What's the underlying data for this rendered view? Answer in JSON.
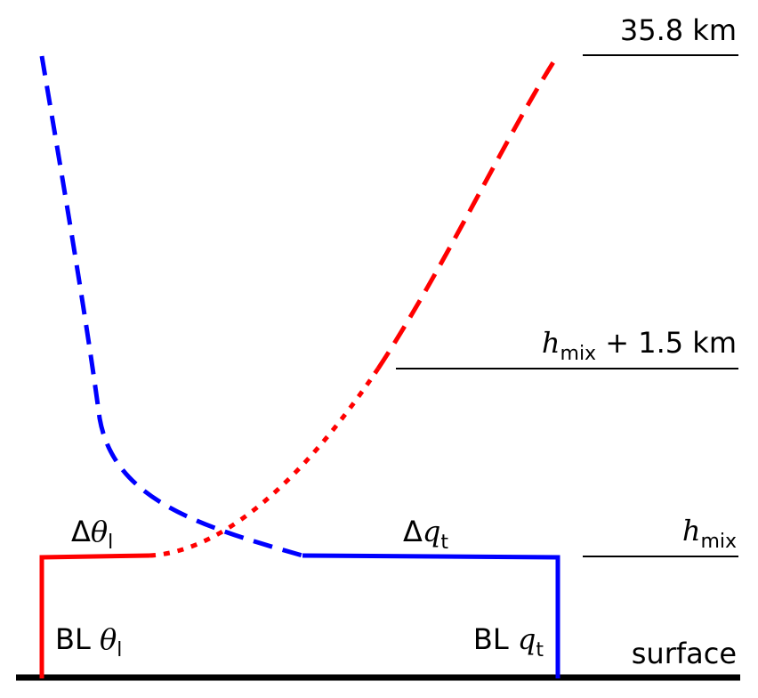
{
  "levels": {
    "top": "35.8 km",
    "middle": {
      "symbol": "h",
      "subscript": "mix",
      "suffix": " + 1.5 km"
    },
    "mix": {
      "symbol": "h",
      "subscript": "mix"
    },
    "surface": "surface"
  },
  "annotations": {
    "delta_theta": {
      "prefix": "Δ",
      "symbol": "θ",
      "subscript": "l"
    },
    "delta_q": {
      "prefix": "Δ",
      "symbol": "q",
      "subscript": "t"
    },
    "bl_theta": {
      "prefix": "BL ",
      "symbol": "θ",
      "subscript": "l"
    },
    "bl_q": {
      "prefix": "BL ",
      "symbol": "q",
      "subscript": "t"
    }
  },
  "colors": {
    "theta_profile": "#ff0000",
    "q_profile": "#0000ff",
    "reference_lines": "#000000"
  }
}
